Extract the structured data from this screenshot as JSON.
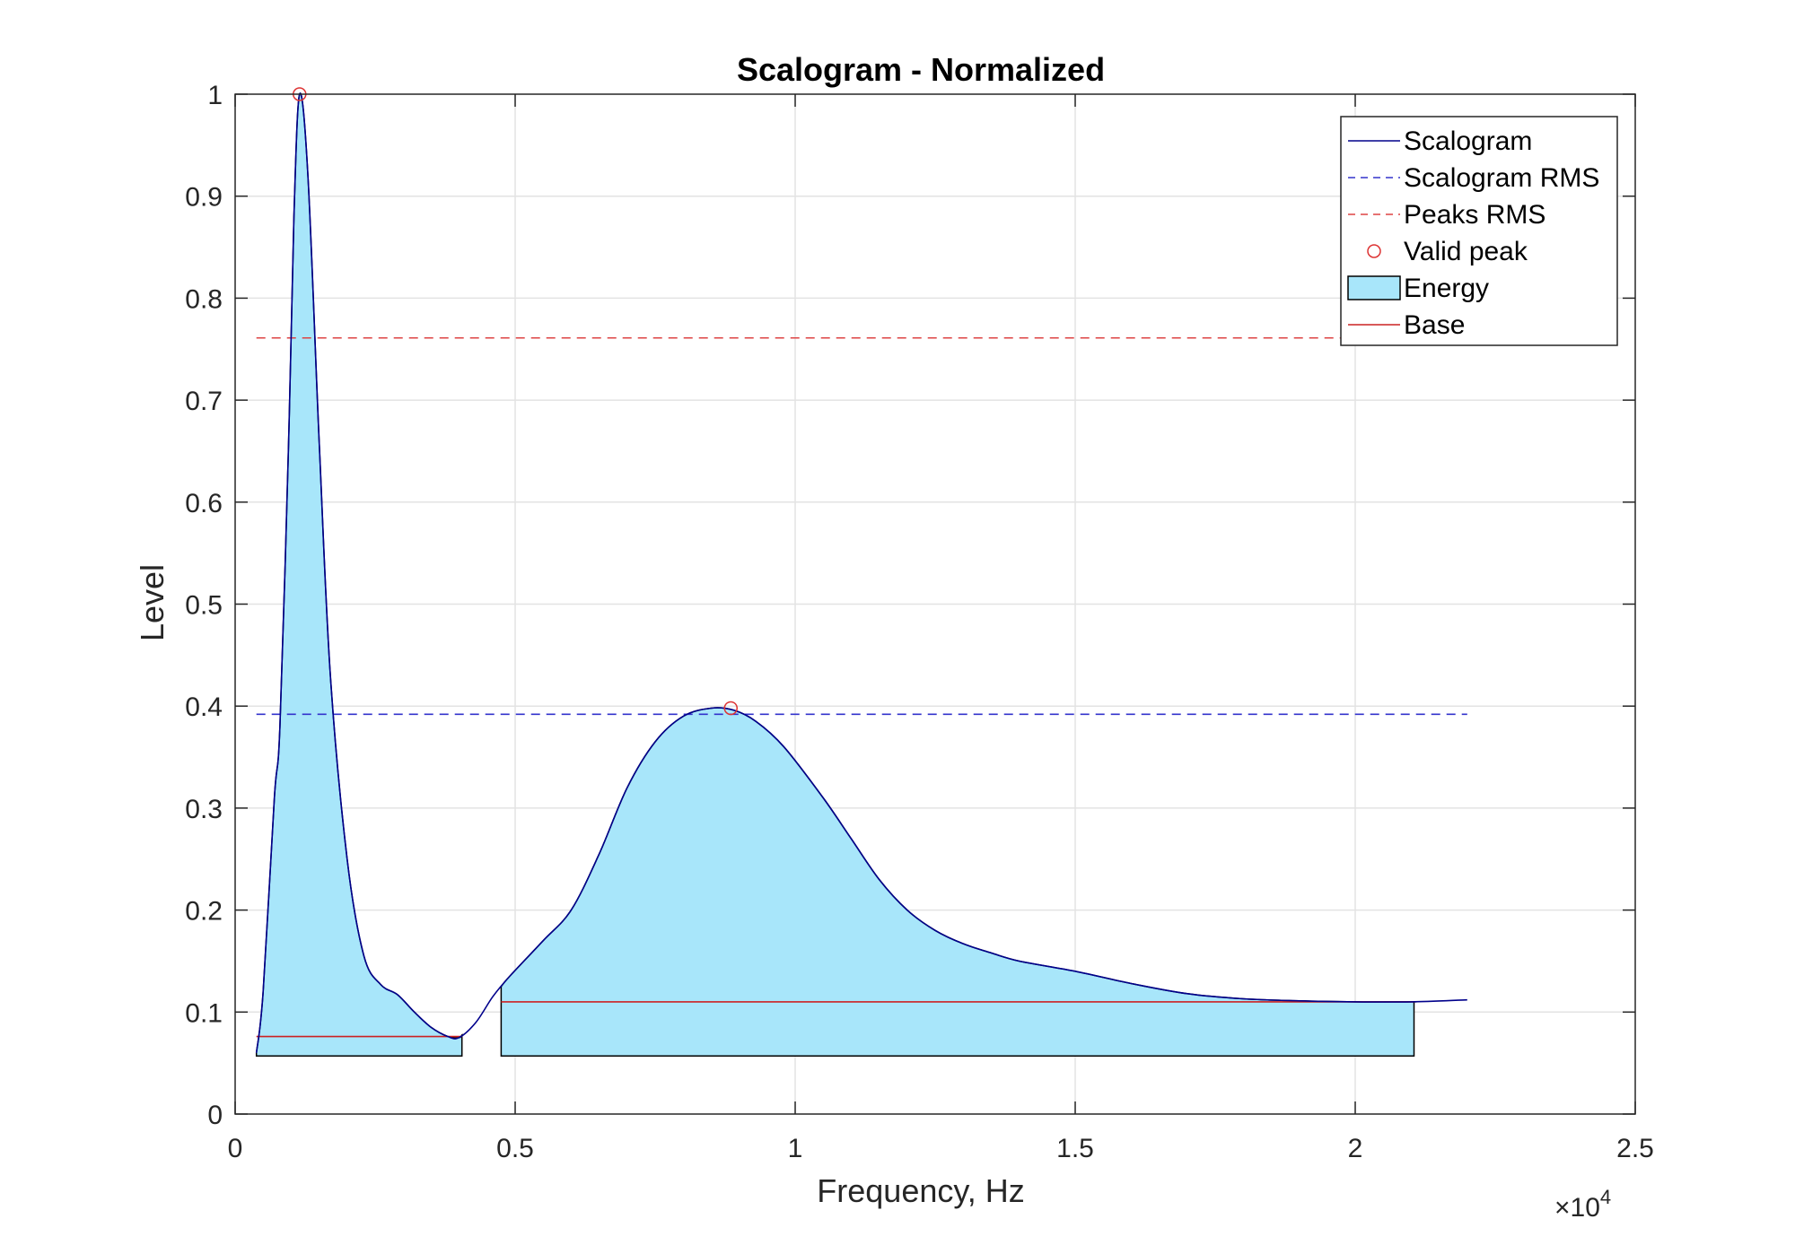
{
  "chart_data": {
    "type": "area",
    "title": "Scalogram - Normalized",
    "xlabel": "Frequency, Hz",
    "ylabel": "Level",
    "x_exponent_label": "×10",
    "x_exponent_power": "4",
    "xlim": [
      0,
      25000
    ],
    "ylim": [
      0,
      1
    ],
    "x_ticks": [
      0,
      5000,
      10000,
      15000,
      20000,
      25000
    ],
    "x_tick_labels": [
      "0",
      "0.5",
      "1",
      "1.5",
      "2",
      "2.5"
    ],
    "y_ticks": [
      0,
      0.1,
      0.2,
      0.3,
      0.4,
      0.5,
      0.6,
      0.7,
      0.8,
      0.9,
      1
    ],
    "y_tick_labels": [
      "0",
      "0.1",
      "0.2",
      "0.3",
      "0.4",
      "0.5",
      "0.6",
      "0.7",
      "0.8",
      "0.9",
      "1"
    ],
    "grid": true,
    "legend_position": "top-right",
    "legend": [
      "Scalogram",
      "Scalogram RMS",
      "Peaks RMS",
      "Valid peak",
      "Energy",
      "Base"
    ],
    "colors": {
      "scalogram": "#00008b",
      "scalogram_rms": "#3333cc",
      "peaks_rms": "#dd4444",
      "valid_peak": "#dd3333",
      "energy_fill": "#a8e6fa",
      "energy_edge": "#000000",
      "base": "#cc2222"
    },
    "series": [
      {
        "name": "Scalogram",
        "x": [
          380,
          500,
          700,
          800,
          950,
          1050,
          1150,
          1300,
          1500,
          1700,
          2000,
          2300,
          2600,
          2900,
          3200,
          3500,
          3800,
          4000,
          4300,
          4600,
          4900,
          5500,
          6000,
          6500,
          7000,
          7500,
          8000,
          8500,
          8900,
          9300,
          9800,
          10500,
          11000,
          11500,
          12000,
          12500,
          13000,
          13500,
          14000,
          15000,
          16000,
          17000,
          18000,
          19000,
          20000,
          21000,
          22000
        ],
        "y": [
          0.06,
          0.12,
          0.31,
          0.38,
          0.65,
          0.88,
          1.0,
          0.92,
          0.66,
          0.43,
          0.25,
          0.155,
          0.127,
          0.117,
          0.1,
          0.085,
          0.076,
          0.075,
          0.09,
          0.115,
          0.135,
          0.17,
          0.2,
          0.255,
          0.32,
          0.365,
          0.39,
          0.398,
          0.396,
          0.385,
          0.36,
          0.31,
          0.27,
          0.23,
          0.2,
          0.18,
          0.167,
          0.158,
          0.15,
          0.14,
          0.128,
          0.118,
          0.113,
          0.111,
          0.11,
          0.11,
          0.112
        ]
      },
      {
        "name": "Scalogram RMS",
        "x": [
          380,
          22000
        ],
        "y": [
          0.392,
          0.392
        ]
      },
      {
        "name": "Peaks RMS",
        "x": [
          380,
          22000
        ],
        "y": [
          0.761,
          0.761
        ]
      },
      {
        "name": "Valid peak",
        "x": [
          1150,
          8850
        ],
        "y": [
          1.0,
          0.398
        ]
      },
      {
        "name": "Energy",
        "regions": [
          {
            "x_start": 380,
            "x_end": 4050,
            "floor": 0.057
          },
          {
            "x_start": 4750,
            "x_end": 21050,
            "floor": 0.057
          }
        ]
      },
      {
        "name": "Base",
        "segments": [
          {
            "x": [
              380,
              4050
            ],
            "y": [
              0.076,
              0.076
            ]
          },
          {
            "x": [
              4750,
              21050
            ],
            "y": [
              0.11,
              0.11
            ]
          }
        ]
      }
    ]
  }
}
